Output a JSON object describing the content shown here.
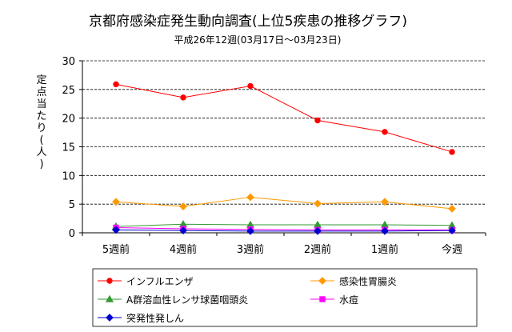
{
  "chart_data": {
    "type": "line",
    "title": "京都府感染症発生動向調査(上位5疾患の推移グラフ)",
    "subtitle": "平成26年12週(03月17日～03月23日)",
    "ylabel": "定点当たり(人)",
    "xlabel": "",
    "categories": [
      "5週前",
      "4週前",
      "3週前",
      "2週前",
      "1週前",
      "今週"
    ],
    "ylim": [
      0,
      30
    ],
    "yticks": [
      0,
      5,
      10,
      15,
      20,
      25,
      30
    ],
    "grid": "horizontal-dashed",
    "legend_position": "bottom",
    "series": [
      {
        "name": "インフルエンザ",
        "color": "#ff0000",
        "marker": "circle",
        "values": [
          25.9,
          23.6,
          25.6,
          19.6,
          17.6,
          14.1
        ]
      },
      {
        "name": "感染性胃腸炎",
        "color": "#ff9900",
        "marker": "diamond",
        "values": [
          5.4,
          4.6,
          6.2,
          5.1,
          5.4,
          4.2
        ]
      },
      {
        "name": "A群溶血性レンサ球菌咽頭炎",
        "color": "#339933",
        "marker": "triangle",
        "values": [
          1.1,
          1.5,
          1.4,
          1.4,
          1.4,
          1.3
        ]
      },
      {
        "name": "水痘",
        "color": "#ff00ff",
        "marker": "square",
        "values": [
          0.9,
          0.7,
          0.6,
          0.5,
          0.5,
          0.5
        ]
      },
      {
        "name": "突発性発しん",
        "color": "#0000cc",
        "marker": "diamond",
        "values": [
          0.5,
          0.4,
          0.3,
          0.3,
          0.3,
          0.4
        ]
      }
    ]
  }
}
